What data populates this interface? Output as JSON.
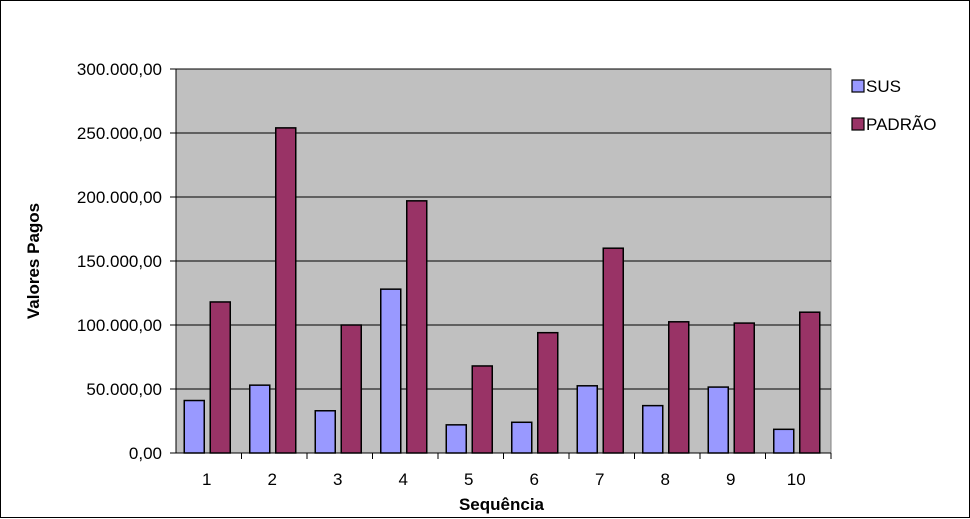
{
  "chart_data": {
    "type": "bar",
    "title": "",
    "xlabel": "Sequência",
    "ylabel": "Valores Pagos",
    "categories": [
      "1",
      "2",
      "3",
      "4",
      "5",
      "6",
      "7",
      "8",
      "9",
      "10"
    ],
    "series": [
      {
        "name": "SUS",
        "color": "#9999FF",
        "values": [
          41000,
          53000,
          33000,
          128000,
          22000,
          24000,
          52500,
          37000,
          51500,
          18500
        ]
      },
      {
        "name": "PADRÃO",
        "color": "#993366",
        "values": [
          118000,
          254000,
          100000,
          197000,
          68000,
          94000,
          160000,
          102500,
          101500,
          110000
        ]
      }
    ],
    "ylim": [
      0,
      300000
    ],
    "yticks": [
      "0,00",
      "50.000,00",
      "100.000,00",
      "150.000,00",
      "200.000,00",
      "250.000,00",
      "300.000,00"
    ],
    "grid": true,
    "plot_background": "#C0C0C0",
    "legend": "right"
  }
}
